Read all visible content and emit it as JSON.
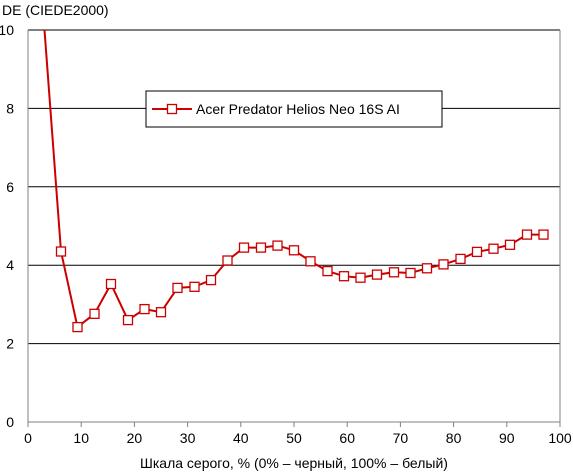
{
  "chart_data": {
    "type": "line",
    "title": "",
    "ylabel": "DE (CIEDE2000)",
    "xlabel": "Шкала серого, % (0% – черный, 100% – белый)",
    "xlim": [
      0,
      100
    ],
    "ylim": [
      0,
      10
    ],
    "xticks": [
      "0",
      "10",
      "20",
      "30",
      "40",
      "50",
      "60",
      "70",
      "80",
      "90",
      "100"
    ],
    "yticks": [
      "0",
      "2",
      "4",
      "6",
      "8",
      "10"
    ],
    "grid": "horizontal",
    "legend_position": "top-center",
    "series": [
      {
        "name": "Acer Predator Helios Neo 16S AI",
        "color": "#cc0000",
        "marker": "open-square",
        "lead_in": [
          3.1,
          10.0
        ],
        "points": [
          [
            6.2,
            4.35
          ],
          [
            9.3,
            2.42
          ],
          [
            12.5,
            2.76
          ],
          [
            15.6,
            3.52
          ],
          [
            18.8,
            2.6
          ],
          [
            21.9,
            2.88
          ],
          [
            25.0,
            2.8
          ],
          [
            28.1,
            3.42
          ],
          [
            31.3,
            3.45
          ],
          [
            34.4,
            3.62
          ],
          [
            37.5,
            4.12
          ],
          [
            40.6,
            4.45
          ],
          [
            43.8,
            4.45
          ],
          [
            46.9,
            4.5
          ],
          [
            50.0,
            4.38
          ],
          [
            53.1,
            4.1
          ],
          [
            56.3,
            3.85
          ],
          [
            59.4,
            3.72
          ],
          [
            62.5,
            3.68
          ],
          [
            65.6,
            3.76
          ],
          [
            68.8,
            3.82
          ],
          [
            71.9,
            3.8
          ],
          [
            75.0,
            3.92
          ],
          [
            78.1,
            4.02
          ],
          [
            81.3,
            4.16
          ],
          [
            84.4,
            4.34
          ],
          [
            87.5,
            4.42
          ],
          [
            90.6,
            4.52
          ],
          [
            93.8,
            4.78
          ],
          [
            96.9,
            4.78
          ]
        ]
      }
    ],
    "colors": {
      "line": "#cc0000",
      "grid": "#000000",
      "axis": "#808080",
      "background": "#ffffff"
    }
  }
}
